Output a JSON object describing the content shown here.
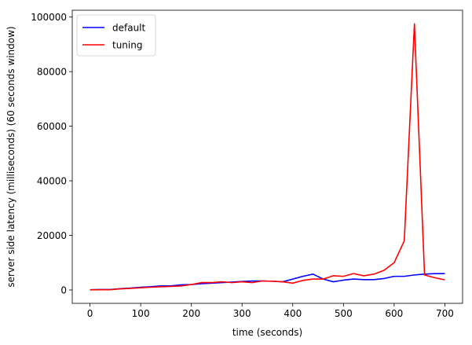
{
  "chart_data": {
    "type": "line",
    "title": "",
    "xlabel": "time (seconds)",
    "ylabel": "server side latency (milliseconds) (60 seconds window)",
    "xlim": [
      -35,
      735
    ],
    "ylim": [
      -4900,
      102500
    ],
    "x_ticks": [
      0,
      100,
      200,
      300,
      400,
      500,
      600,
      700
    ],
    "x_tick_labels": [
      "0",
      "100",
      "200",
      "300",
      "400",
      "500",
      "600",
      "700"
    ],
    "y_ticks": [
      0,
      20000,
      40000,
      60000,
      80000,
      100000
    ],
    "y_tick_labels": [
      "0",
      "20000",
      "40000",
      "60000",
      "80000",
      "100000"
    ],
    "grid": false,
    "legend_position": "top-left",
    "series": [
      {
        "name": "default",
        "color": "#0000ff",
        "x": [
          0,
          20,
          40,
          60,
          80,
          100,
          120,
          140,
          160,
          180,
          200,
          220,
          240,
          260,
          280,
          300,
          320,
          340,
          360,
          380,
          400,
          420,
          440,
          460,
          480,
          500,
          520,
          540,
          560,
          580,
          600,
          620,
          640,
          660,
          680,
          700
        ],
        "y": [
          100,
          150,
          150,
          500,
          700,
          1000,
          1200,
          1500,
          1500,
          1900,
          2000,
          2300,
          2500,
          2700,
          2900,
          3100,
          3300,
          3300,
          3200,
          3000,
          4000,
          5000,
          5800,
          4000,
          3000,
          3600,
          4000,
          3800,
          3800,
          4200,
          5000,
          5000,
          5500,
          5800,
          6000,
          6000
        ]
      },
      {
        "name": "tuning",
        "color": "#ff0000",
        "x": [
          0,
          20,
          40,
          60,
          80,
          100,
          120,
          140,
          160,
          180,
          200,
          220,
          240,
          260,
          280,
          300,
          320,
          340,
          360,
          380,
          400,
          420,
          440,
          460,
          480,
          500,
          520,
          540,
          560,
          580,
          600,
          620,
          640,
          660,
          680,
          700
        ],
        "y": [
          50,
          100,
          100,
          400,
          600,
          800,
          1000,
          1200,
          1300,
          1500,
          2000,
          2700,
          2700,
          3000,
          2700,
          3000,
          2700,
          3300,
          3200,
          3000,
          2500,
          3500,
          4000,
          4000,
          5200,
          5000,
          6000,
          5200,
          5800,
          7200,
          10000,
          18000,
          97500,
          5500,
          4500,
          3700
        ]
      }
    ]
  }
}
